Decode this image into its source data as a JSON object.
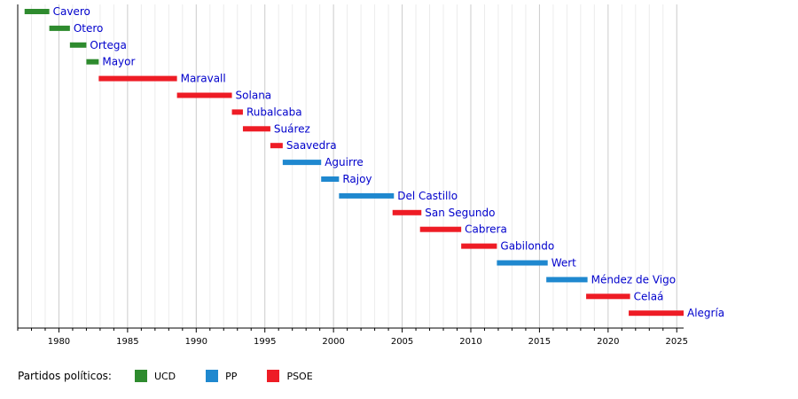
{
  "chart_data": {
    "type": "timeline",
    "xlim": [
      1977,
      2025.5
    ],
    "ticks": [
      1980,
      1985,
      1990,
      1995,
      2000,
      2005,
      2010,
      2015,
      2020,
      2025
    ],
    "grid": true,
    "legend": {
      "title": "Partidos políticos:",
      "position": "bottom-left",
      "entries": [
        {
          "party": "UCD",
          "color": "#2e8b2e"
        },
        {
          "party": "PP",
          "color": "#1f88cf"
        },
        {
          "party": "PSOE",
          "color": "#ee1c25"
        }
      ]
    },
    "bars": [
      {
        "name": "Cavero",
        "party": "UCD",
        "start": 1977.5,
        "end": 1979.3
      },
      {
        "name": "Otero",
        "party": "UCD",
        "start": 1979.3,
        "end": 1980.8
      },
      {
        "name": "Ortega",
        "party": "UCD",
        "start": 1980.8,
        "end": 1982.0
      },
      {
        "name": "Mayor",
        "party": "UCD",
        "start": 1982.0,
        "end": 1982.9
      },
      {
        "name": "Maravall",
        "party": "PSOE",
        "start": 1982.9,
        "end": 1988.6
      },
      {
        "name": "Solana",
        "party": "PSOE",
        "start": 1988.6,
        "end": 1992.6
      },
      {
        "name": "Rubalcaba",
        "party": "PSOE",
        "start": 1992.6,
        "end": 1993.4
      },
      {
        "name": "Suárez",
        "party": "PSOE",
        "start": 1993.4,
        "end": 1995.4
      },
      {
        "name": "Saavedra",
        "party": "PSOE",
        "start": 1995.4,
        "end": 1996.3
      },
      {
        "name": "Aguirre",
        "party": "PP",
        "start": 1996.3,
        "end": 1999.1
      },
      {
        "name": "Rajoy",
        "party": "PP",
        "start": 1999.1,
        "end": 2000.4
      },
      {
        "name": "Del Castillo",
        "party": "PP",
        "start": 2000.4,
        "end": 2004.4
      },
      {
        "name": "San Segundo",
        "party": "PSOE",
        "start": 2004.3,
        "end": 2006.4
      },
      {
        "name": "Cabrera",
        "party": "PSOE",
        "start": 2006.3,
        "end": 2009.3
      },
      {
        "name": "Gabilondo",
        "party": "PSOE",
        "start": 2009.3,
        "end": 2011.9
      },
      {
        "name": "Wert",
        "party": "PP",
        "start": 2011.9,
        "end": 2015.6
      },
      {
        "name": "Méndez de Vigo",
        "party": "PP",
        "start": 2015.5,
        "end": 2018.5
      },
      {
        "name": "Celaá",
        "party": "PSOE",
        "start": 2018.4,
        "end": 2021.6
      },
      {
        "name": "Alegría",
        "party": "PSOE",
        "start": 2021.5,
        "end": 2025.5
      }
    ]
  }
}
